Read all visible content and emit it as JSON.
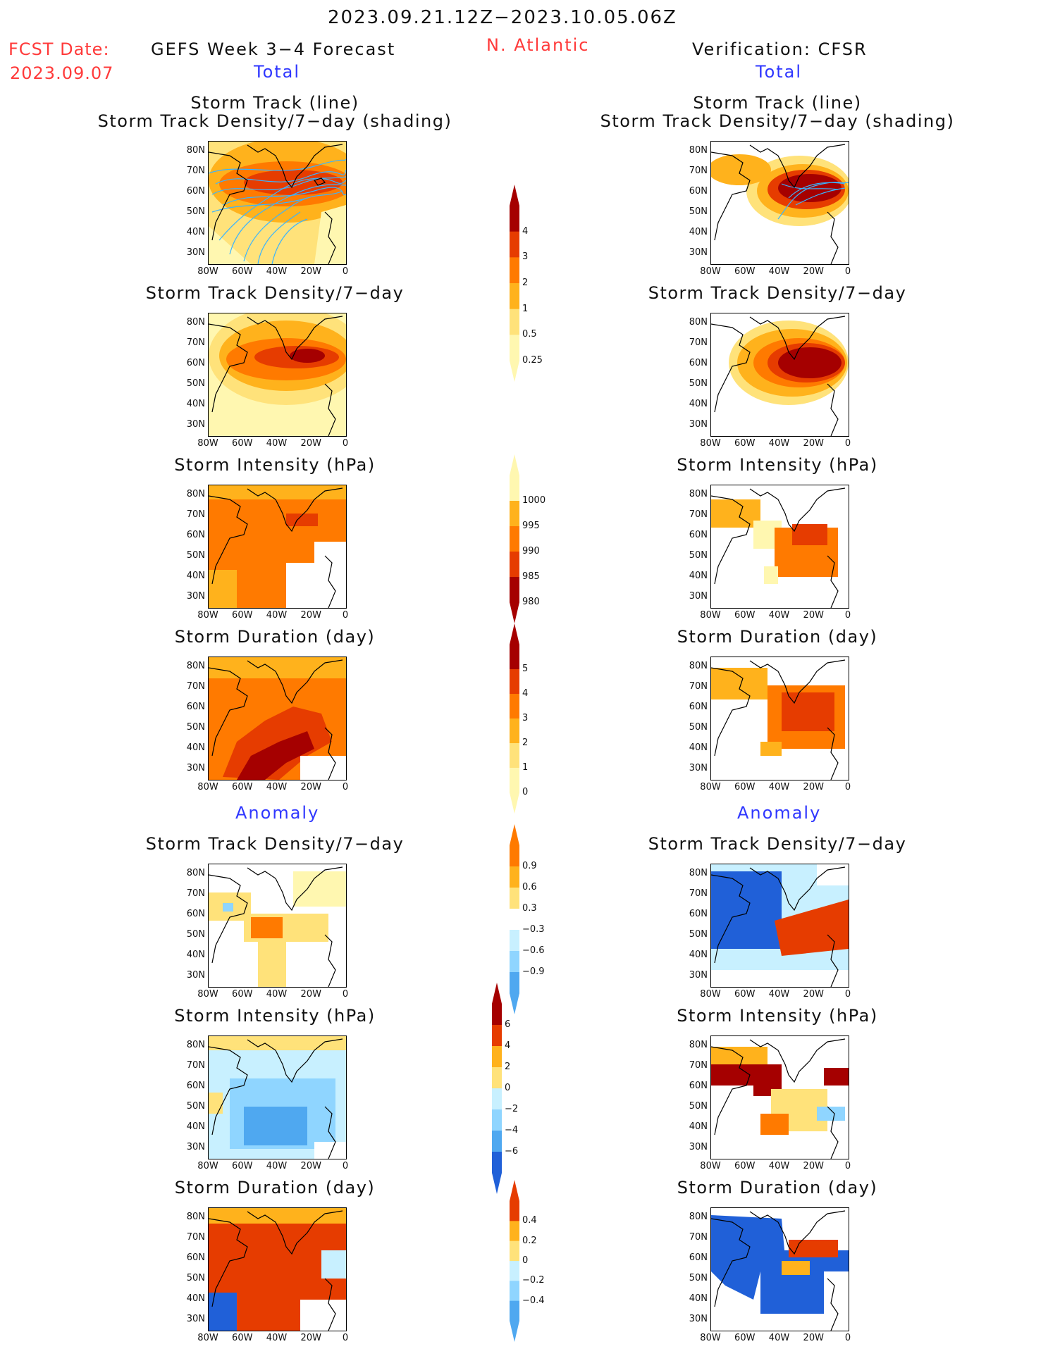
{
  "header": {
    "date_range": "2023.09.21.12Z−2023.10.05.06Z",
    "fcst_label": "FCST Date:",
    "fcst_date": "2023.09.07",
    "left_title": "GEFS Week 3−4 Forecast",
    "region": "N. Atlantic",
    "right_title": "Verification: CFSR",
    "total_label": "Total",
    "anomaly_label": "Anomaly"
  },
  "axes": {
    "lat_labels": [
      "80N",
      "70N",
      "60N",
      "50N",
      "40N",
      "30N"
    ],
    "lon_labels": [
      "80W",
      "60W",
      "40W",
      "20W",
      "0"
    ]
  },
  "panel_titles": {
    "track_line_1": "Storm Track (line)",
    "track_line_2": "Storm Track Density/7−day (shading)",
    "density": "Storm Track Density/7−day",
    "intensity": "Storm Intensity (hPa)",
    "duration": "Storm Duration (day)"
  },
  "colorbars": {
    "density_total": [
      "4",
      "3",
      "2",
      "1",
      "0.5",
      "0.25"
    ],
    "intensity_total": [
      "1000",
      "995",
      "990",
      "985",
      "980"
    ],
    "duration_total": [
      "5",
      "4",
      "3",
      "2",
      "1",
      "0"
    ],
    "density_anom": [
      "0.9",
      "0.6",
      "0.3",
      "−0.3",
      "−0.6",
      "−0.9"
    ],
    "intensity_anom": [
      "6",
      "4",
      "2",
      "0",
      "−2",
      "−4",
      "−6"
    ],
    "duration_anom": [
      "0.4",
      "0.2",
      "0",
      "−0.2",
      "−0.4"
    ]
  },
  "colors": {
    "warm": [
      "#fff7b0",
      "#ffe27a",
      "#ffb21c",
      "#ff7a00",
      "#e63c00",
      "#a50000"
    ],
    "cool": [
      "#c8f0ff",
      "#8fd5ff",
      "#4fa8f0",
      "#2060d8"
    ],
    "track_line": "#3ab4ff",
    "text_red": "#ff3a3a",
    "text_blue": "#2f37ff"
  }
}
